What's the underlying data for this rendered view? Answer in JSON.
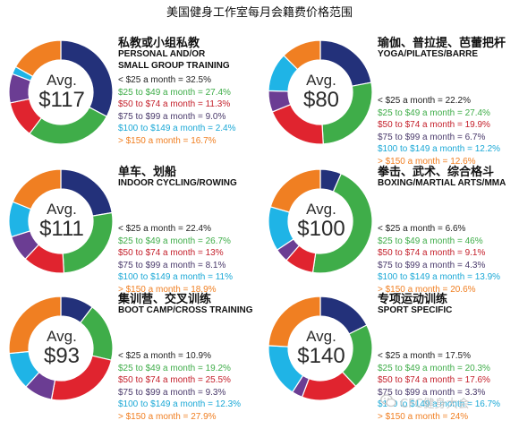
{
  "page_title": "美国健身工作室每月会籍费价格范围",
  "watermark": "CFC健身大会",
  "watermark_icon": "wechat-logo-icon",
  "slice_colors": [
    "#23317a",
    "#3fad49",
    "#e0242f",
    "#6b3d93",
    "#1fb4e6",
    "#f07f22"
  ],
  "text_colors": [
    "#222222",
    "#3fad49",
    "#c4202b",
    "#4a3a6b",
    "#1aa8d6",
    "#f07f22"
  ],
  "chart_data": [
    {
      "type": "pie",
      "title_cn": "私教或小组私教",
      "title_en": [
        "PERSONAL AND/OR",
        "SMALL GROUP TRAINING"
      ],
      "avg_label": "Avg.",
      "avg_value": "$117",
      "categories": [
        "< $25 a month",
        "$25 to $49 a month",
        "$50 to $74 a month",
        "$75 to $99 a month",
        "$100 to $149 a month",
        "> $150 a month"
      ],
      "values": [
        32.5,
        27.4,
        11.3,
        9.0,
        2.4,
        16.7
      ],
      "value_labels": [
        "32.5%",
        "27.4%",
        "11.3%",
        "9.0%",
        "2.4%",
        "16.7%"
      ]
    },
    {
      "type": "pie",
      "title_cn": "瑜伽、普拉提、芭蕾把杆",
      "title_en": [
        "YOGA/PILATES/BARRE"
      ],
      "avg_label": "Avg.",
      "avg_value": "$80",
      "categories": [
        "< $25 a month",
        "$25 to $49 a month",
        "$50 to $74 a month",
        "$75 to $99 a month",
        "$100 to $149 a month",
        "> $150 a month"
      ],
      "values": [
        22.2,
        27.4,
        19.9,
        6.7,
        12.2,
        12.6
      ],
      "value_labels": [
        "22.2%",
        "27.4%",
        "19.9%",
        "6.7%",
        "12.2%",
        "12.6%"
      ]
    },
    {
      "type": "pie",
      "title_cn": "单车、划船",
      "title_en": [
        "INDOOR CYCLING/ROWING"
      ],
      "avg_label": "Avg.",
      "avg_value": "$111",
      "categories": [
        "< $25 a month",
        "$25 to $49 a month",
        "$50 to $74 a month",
        "$75 to $99 a month",
        "$100 to $149 a month",
        "> $150 a month"
      ],
      "values": [
        22.4,
        26.7,
        13,
        8.1,
        11,
        18.9
      ],
      "value_labels": [
        "22.4%",
        "26.7%",
        "13%",
        "8.1%",
        "11%",
        "18.9%"
      ]
    },
    {
      "type": "pie",
      "title_cn": "拳击、武术、综合格斗",
      "title_en": [
        "BOXING/MARTIAL ARTS/MMA"
      ],
      "avg_label": "Avg.",
      "avg_value": "$100",
      "categories": [
        "< $25 a month",
        "$25 to $49 a month",
        "$50 to $74 a month",
        "$75 to $99 a month",
        "$100 to $149 a month",
        "> $150 a month"
      ],
      "values": [
        6.6,
        46,
        9.1,
        4.3,
        13.9,
        20.6
      ],
      "value_labels": [
        "6.6%",
        "46%",
        "9.1%",
        "4.3%",
        "13.9%",
        "20.6%"
      ]
    },
    {
      "type": "pie",
      "title_cn": "集训营、交叉训练",
      "title_en": [
        "BOOT CAMP/CROSS TRAINING"
      ],
      "avg_label": "Avg.",
      "avg_value": "$93",
      "categories": [
        "< $25 a month",
        "$25 to $49 a month",
        "$50 to $74 a month",
        "$75 to $99 a month",
        "$100 to $149 a month",
        "> $150 a month"
      ],
      "values": [
        10.9,
        19.2,
        25.5,
        9.3,
        12.3,
        27.9
      ],
      "value_labels": [
        "10.9%",
        "19.2%",
        "25.5%",
        "9.3%",
        "12.3%",
        "27.9%"
      ]
    },
    {
      "type": "pie",
      "title_cn": "专项运动训练",
      "title_en": [
        "SPORT SPECIFIC"
      ],
      "avg_label": "Avg.",
      "avg_value": "$140",
      "categories": [
        "< $25 a month",
        "$25 to $49 a month",
        "$50 to $74 a month",
        "$75 to $99 a month",
        "$100 to $149 a month",
        "> $150 a month"
      ],
      "values": [
        17.5,
        20.3,
        17.6,
        3.3,
        16.7,
        24
      ],
      "value_labels": [
        "17.5%",
        "20.3%",
        "17.6%",
        "3.3%",
        "16.7%",
        "24%"
      ]
    }
  ]
}
